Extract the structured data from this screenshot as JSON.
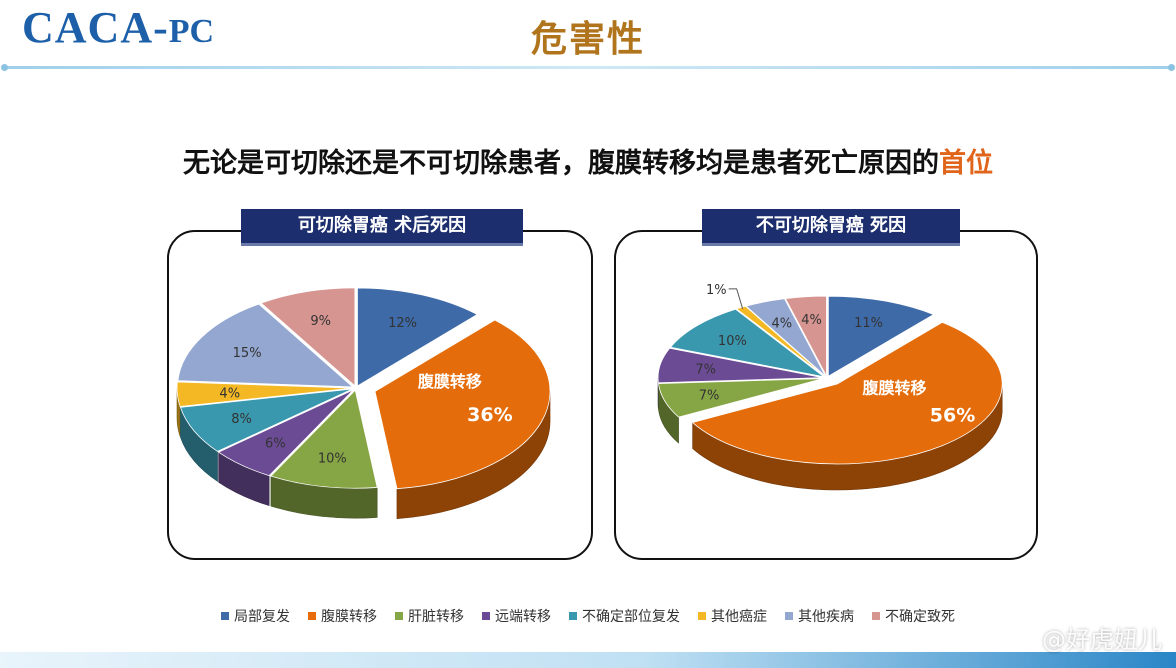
{
  "header": {
    "logo_main": "CACA-",
    "logo_suffix": "PC",
    "title": "危害性"
  },
  "subtitle": {
    "text": "无论是可切除还是不可切除患者，腹膜转移均是患者死亡原因的",
    "highlight": "首位"
  },
  "colors": {
    "logo": "#1d5fa8",
    "title": "#b0741c",
    "highlight": "#e0641a",
    "panel_label_bg": "#1c2e6e"
  },
  "chart_data": [
    {
      "type": "pie",
      "title": "可切除胃癌 术后死因",
      "slices": [
        {
          "label": "局部复发",
          "value": 12,
          "display": "12%",
          "color": "#3e6aa8"
        },
        {
          "label": "腹膜转移",
          "value": 36,
          "display": "36%",
          "color": "#e46c0a",
          "callout": "腹膜转移"
        },
        {
          "label": "肝脏转移",
          "value": 10,
          "display": "10%",
          "color": "#86a544"
        },
        {
          "label": "远端转移",
          "value": 6,
          "display": "6%",
          "color": "#6b4b94"
        },
        {
          "label": "不确定部位复发",
          "value": 8,
          "display": "8%",
          "color": "#3a98ae"
        },
        {
          "label": "其他癌症",
          "value": 4,
          "display": "4%",
          "color": "#f3b823"
        },
        {
          "label": "其他疾病",
          "value": 15,
          "display": "15%",
          "color": "#93a7d1"
        },
        {
          "label": "不确定致死",
          "value": 9,
          "display": "9%",
          "color": "#d69591"
        }
      ]
    },
    {
      "type": "pie",
      "title": "不可切除胃癌 死因",
      "slices": [
        {
          "label": "局部复发",
          "value": 11,
          "display": "11%",
          "color": "#3e6aa8"
        },
        {
          "label": "腹膜转移",
          "value": 56,
          "display": "56%",
          "color": "#e46c0a",
          "callout": "腹膜转移"
        },
        {
          "label": "肝脏转移",
          "value": 7,
          "display": "7%",
          "color": "#86a544"
        },
        {
          "label": "远端转移",
          "value": 7,
          "display": "7%",
          "color": "#6b4b94"
        },
        {
          "label": "不确定部位复发",
          "value": 10,
          "display": "10%",
          "color": "#3a98ae"
        },
        {
          "label": "其他癌症",
          "value": 1,
          "display": "1%",
          "color": "#f3b823"
        },
        {
          "label": "其他疾病",
          "value": 4,
          "display": "4%",
          "color": "#93a7d1"
        },
        {
          "label": "不确定致死",
          "value": 4,
          "display": "4%",
          "color": "#d69591"
        }
      ]
    }
  ],
  "legend": [
    {
      "label": "局部复发",
      "color": "#3e6aa8"
    },
    {
      "label": "腹膜转移",
      "color": "#e46c0a"
    },
    {
      "label": "肝脏转移",
      "color": "#86a544"
    },
    {
      "label": "远端转移",
      "color": "#6b4b94"
    },
    {
      "label": "不确定部位复发",
      "color": "#3a98ae"
    },
    {
      "label": "其他癌症",
      "color": "#f3b823"
    },
    {
      "label": "其他疾病",
      "color": "#93a7d1"
    },
    {
      "label": "不确定致死",
      "color": "#d69591"
    }
  ],
  "watermark": "@好虎妞儿"
}
